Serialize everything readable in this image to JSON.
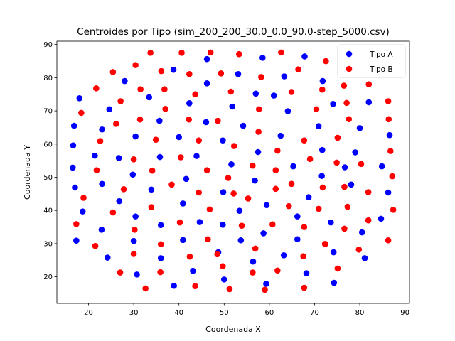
{
  "chart_data": {
    "type": "scatter",
    "title": "Centroides por Tipo (sim_200_200_30.0_0.0_90.0-step_5000.csv)",
    "xlabel": "Coordenada X",
    "ylabel": "Coordenada Y",
    "xlim": [
      13,
      91
    ],
    "ylim": [
      12,
      91
    ],
    "xticks": [
      20,
      30,
      40,
      50,
      60,
      70,
      80,
      90
    ],
    "yticks": [
      20,
      30,
      40,
      50,
      60,
      70,
      80,
      90
    ],
    "grid": false,
    "legend_position": "top-right",
    "series": [
      {
        "name": "Tipo A",
        "color": "#0000ff",
        "points": [
          [
            16.8,
            65.5
          ],
          [
            18.0,
            73.8
          ],
          [
            24.6,
            70.5
          ],
          [
            28.0,
            79.0
          ],
          [
            33.4,
            74.1
          ],
          [
            38.8,
            82.4
          ],
          [
            46.2,
            85.6
          ],
          [
            58.5,
            86.0
          ],
          [
            67.8,
            86.4
          ],
          [
            16.6,
            59.6
          ],
          [
            21.4,
            56.5
          ],
          [
            26.7,
            55.8
          ],
          [
            30.4,
            62.3
          ],
          [
            35.7,
            67.0
          ],
          [
            42.3,
            72.3
          ],
          [
            46.2,
            78.3
          ],
          [
            51.8,
            71.3
          ],
          [
            53.1,
            81.1
          ],
          [
            57.0,
            75.2
          ],
          [
            61.0,
            74.6
          ],
          [
            63.3,
            80.4
          ],
          [
            64.1,
            69.9
          ],
          [
            70.9,
            65.4
          ],
          [
            71.8,
            79.0
          ],
          [
            74.1,
            72.1
          ],
          [
            80.0,
            64.8
          ],
          [
            82.0,
            72.6
          ],
          [
            16.5,
            52.9
          ],
          [
            17.0,
            46.9
          ],
          [
            23.0,
            48.0
          ],
          [
            29.8,
            50.8
          ],
          [
            23.0,
            64.4
          ],
          [
            35.8,
            56.1
          ],
          [
            40.0,
            62.1
          ],
          [
            43.9,
            56.4
          ],
          [
            46.0,
            66.6
          ],
          [
            49.7,
            61.1
          ],
          [
            51.6,
            53.9
          ],
          [
            54.2,
            65.5
          ],
          [
            57.5,
            57.6
          ],
          [
            62.5,
            62.5
          ],
          [
            65.3,
            53.3
          ],
          [
            71.7,
            58.2
          ],
          [
            76.7,
            53.0
          ],
          [
            79.0,
            57.5
          ],
          [
            84.9,
            53.3
          ],
          [
            86.6,
            62.7
          ],
          [
            71.6,
            50.4
          ],
          [
            18.7,
            39.7
          ],
          [
            17.3,
            30.9
          ],
          [
            22.9,
            34.2
          ],
          [
            26.8,
            42.8
          ],
          [
            30.4,
            38.2
          ],
          [
            33.9,
            46.3
          ],
          [
            36.0,
            35.6
          ],
          [
            40.9,
            42.1
          ],
          [
            41.6,
            49.5
          ],
          [
            44.6,
            36.5
          ],
          [
            49.8,
            45.5
          ],
          [
            53.4,
            39.9
          ],
          [
            56.8,
            49.0
          ],
          [
            59.4,
            41.6
          ],
          [
            66.2,
            38.2
          ],
          [
            68.7,
            44.0
          ],
          [
            73.6,
            36.4
          ],
          [
            78.1,
            47.8
          ],
          [
            80.5,
            33.4
          ],
          [
            84.7,
            37.5
          ],
          [
            86.3,
            45.4
          ],
          [
            24.2,
            25.8
          ],
          [
            30.0,
            30.8
          ],
          [
            30.7,
            20.7
          ],
          [
            36.0,
            25.6
          ],
          [
            38.9,
            17.3
          ],
          [
            40.9,
            31.1
          ],
          [
            43.1,
            21.8
          ],
          [
            48.7,
            27.4
          ],
          [
            49.7,
            35.7
          ],
          [
            50.0,
            19.2
          ],
          [
            53.7,
            31.0
          ],
          [
            56.4,
            24.6
          ],
          [
            58.7,
            33.1
          ],
          [
            59.3,
            17.9
          ],
          [
            63.2,
            26.5
          ],
          [
            66.2,
            31.3
          ],
          [
            68.2,
            21.1
          ],
          [
            74.2,
            27.4
          ],
          [
            74.3,
            18.2
          ],
          [
            81.1,
            25.6
          ]
        ]
      },
      {
        "name": "Tipo B",
        "color": "#ff0000",
        "points": [
          [
            18.4,
            69.4
          ],
          [
            21.7,
            76.8
          ],
          [
            25.4,
            81.7
          ],
          [
            26.1,
            66.1
          ],
          [
            27.1,
            72.9
          ],
          [
            30.4,
            83.8
          ],
          [
            31.5,
            76.5
          ],
          [
            33.7,
            87.5
          ],
          [
            36.1,
            82.0
          ],
          [
            36.8,
            76.5
          ],
          [
            37.0,
            70.6
          ],
          [
            40.6,
            87.5
          ],
          [
            42.3,
            81.1
          ],
          [
            43.6,
            75.0
          ],
          [
            47.0,
            87.6
          ],
          [
            49.3,
            81.3
          ],
          [
            51.5,
            75.8
          ],
          [
            53.3,
            87.1
          ],
          [
            57.7,
            70.5
          ],
          [
            58.2,
            80.2
          ],
          [
            62.6,
            87.6
          ],
          [
            64.9,
            75.7
          ],
          [
            66.4,
            82.5
          ],
          [
            70.4,
            70.5
          ],
          [
            71.7,
            76.4
          ],
          [
            72.5,
            85.0
          ],
          [
            76.5,
            77.6
          ],
          [
            77.1,
            72.4
          ],
          [
            77.6,
            67.5
          ],
          [
            82.0,
            78.0
          ],
          [
            86.3,
            72.9
          ],
          [
            86.4,
            67.5
          ],
          [
            21.8,
            52.1
          ],
          [
            22.6,
            60.9
          ],
          [
            30.0,
            55.4
          ],
          [
            31.4,
            67.4
          ],
          [
            34.1,
            52.0
          ],
          [
            34.9,
            61.3
          ],
          [
            38.4,
            47.8
          ],
          [
            40.4,
            56.0
          ],
          [
            42.2,
            67.4
          ],
          [
            44.4,
            61.1
          ],
          [
            46.2,
            52.1
          ],
          [
            48.6,
            67.0
          ],
          [
            50.9,
            49.8
          ],
          [
            52.2,
            59.4
          ],
          [
            55.3,
            43.6
          ],
          [
            56.3,
            53.5
          ],
          [
            57.6,
            63.7
          ],
          [
            61.4,
            52.1
          ],
          [
            61.8,
            58.0
          ],
          [
            64.9,
            48.0
          ],
          [
            67.7,
            61.1
          ],
          [
            69.0,
            55.5
          ],
          [
            71.8,
            46.9
          ],
          [
            74.9,
            54.4
          ],
          [
            75.1,
            61.9
          ],
          [
            76.6,
            47.1
          ],
          [
            80.3,
            54.0
          ],
          [
            81.9,
            45.5
          ],
          [
            86.8,
            57.9
          ],
          [
            87.2,
            50.3
          ],
          [
            17.3,
            35.9
          ],
          [
            18.9,
            43.8
          ],
          [
            25.4,
            39.4
          ],
          [
            27.8,
            46.4
          ],
          [
            30.2,
            34.2
          ],
          [
            33.9,
            41.0
          ],
          [
            36.0,
            29.8
          ],
          [
            40.2,
            36.4
          ],
          [
            42.4,
            26.1
          ],
          [
            44.4,
            45.4
          ],
          [
            46.4,
            31.3
          ],
          [
            46.8,
            40.3
          ],
          [
            48.5,
            26.8
          ],
          [
            52.1,
            45.1
          ],
          [
            53.9,
            35.4
          ],
          [
            56.9,
            28.5
          ],
          [
            60.7,
            35.8
          ],
          [
            61.4,
            46.5
          ],
          [
            64.3,
            41.3
          ],
          [
            67.7,
            35.0
          ],
          [
            70.9,
            40.5
          ],
          [
            72.3,
            29.9
          ],
          [
            76.6,
            34.5
          ],
          [
            77.3,
            41.1
          ],
          [
            79.8,
            28.2
          ],
          [
            81.9,
            37.0
          ],
          [
            86.3,
            31.0
          ],
          [
            87.4,
            40.2
          ],
          [
            21.5,
            29.3
          ],
          [
            27.0,
            21.3
          ],
          [
            30.0,
            26.9
          ],
          [
            32.6,
            16.5
          ],
          [
            35.9,
            21.4
          ],
          [
            43.6,
            17.2
          ],
          [
            49.7,
            23.2
          ],
          [
            51.2,
            16.3
          ],
          [
            56.3,
            21.3
          ],
          [
            59.0,
            16.1
          ],
          [
            61.8,
            21.9
          ],
          [
            67.5,
            26.2
          ],
          [
            67.7,
            16.7
          ],
          [
            72.4,
            29.9
          ],
          [
            75.1,
            22.5
          ]
        ]
      }
    ]
  }
}
